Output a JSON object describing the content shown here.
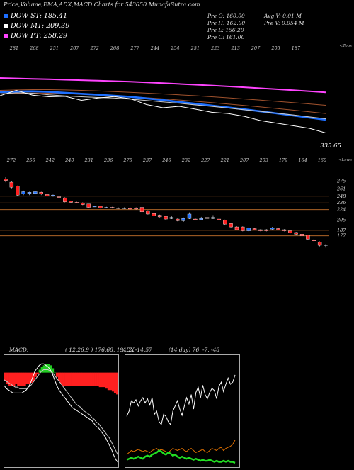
{
  "header": {
    "title": "Price,Volume,EMA,ADX,MACD Charts for 543650 MunafaSutra.com"
  },
  "legend": [
    {
      "label": "DOW ST: 185.41",
      "color": "#1e6fff"
    },
    {
      "label": "DOW MT: 209.39",
      "color": "#ffffff"
    },
    {
      "label": "DOW PT: 258.29",
      "color": "#ff44ff"
    }
  ],
  "stats": {
    "open": "Pre  O: 160.00",
    "high": "Pre  H: 162.00",
    "low": "Pre  L: 156.20",
    "close": "Pre  C: 161.00",
    "avg_vol": "Avg V: 0.01 M",
    "pre_vol": "Pre  V: 0.054  M"
  },
  "chart_data": [
    {
      "type": "line",
      "name": "ema-panel",
      "top_label": "<Tops",
      "bottom_label": "<Lows",
      "tops": [
        "281",
        "268",
        "251",
        "267",
        "272",
        "268",
        "277",
        "244",
        "254",
        "251",
        "223",
        "213",
        "207",
        "205",
        "187"
      ],
      "lows": [
        "272",
        "256",
        "242",
        "240",
        "231",
        "236",
        "275",
        "237",
        "246",
        "232",
        "227",
        "221",
        "207",
        "203",
        "179",
        "164",
        "160"
      ],
      "last_value": "335.65",
      "series": [
        {
          "color": "#ff44ff",
          "values": [
            312,
            311.5,
            311,
            310.6,
            310,
            309.5,
            309,
            308.4,
            307.8,
            307,
            306.2,
            305.3,
            304.4,
            303.5,
            302.5,
            301.5,
            300.4,
            299.3,
            298.2,
            297,
            295.8
          ]
        },
        {
          "color": "#a0522d",
          "values": [
            298,
            298.5,
            298.8,
            298.8,
            298.5,
            298,
            297.4,
            296.6,
            295.8,
            294.9,
            294,
            293,
            292,
            290.8,
            289.6,
            288.3,
            287,
            285.6,
            284.2,
            282.7,
            281.2
          ]
        },
        {
          "color": "#a0522d",
          "values": [
            294,
            294.6,
            295,
            294.8,
            294.3,
            293.6,
            292.8,
            291.8,
            290.8,
            289.7,
            288.5,
            287.1,
            285.7,
            284.2,
            282.6,
            281,
            279.3,
            277.5,
            275.7,
            273.8,
            271.9
          ]
        },
        {
          "color": "#1e6fff",
          "values": [
            296,
            296.7,
            297,
            296.3,
            295.3,
            294.2,
            293.1,
            292,
            290.7,
            289,
            287.1,
            285,
            283,
            280.9,
            278.8,
            276.6,
            274.3,
            272,
            269.6,
            267.2,
            264.8
          ]
        },
        {
          "color": "#cccccc",
          "values": [
            294,
            295.3,
            294.8,
            293,
            291.8,
            290.8,
            290,
            289.4,
            288.1,
            286.6,
            285,
            283.5,
            281.6,
            279.9,
            278.1,
            276.1,
            274.3,
            272.2,
            270.3,
            268.1,
            266
          ]
        },
        {
          "color": "#ffffff",
          "values": [
            292,
            298,
            292.6,
            290.8,
            291.3,
            286.8,
            289.4,
            291,
            288.6,
            282,
            278.4,
            280,
            276.8,
            273.3,
            271.9,
            268.7,
            263.9,
            261,
            258.1,
            255.2,
            250
          ]
        }
      ]
    },
    {
      "type": "candlestick",
      "name": "price-panel",
      "levels": [
        "275",
        "261",
        "248",
        "236",
        "224",
        "205",
        "187",
        "177"
      ],
      "candles": [
        {
          "o": 279,
          "c": 276,
          "h": 282,
          "l": 273
        },
        {
          "o": 273,
          "c": 264,
          "h": 275,
          "l": 262
        },
        {
          "o": 266,
          "c": 250,
          "h": 267,
          "l": 249
        },
        {
          "o": 252,
          "c": 256,
          "h": 258,
          "l": 250
        },
        {
          "o": 253,
          "c": 255,
          "h": 256,
          "l": 250
        },
        {
          "o": 253,
          "c": 256,
          "h": 257,
          "l": 252
        },
        {
          "o": 255,
          "c": 252,
          "h": 256,
          "l": 250
        },
        {
          "o": 251,
          "c": 248,
          "h": 252,
          "l": 246
        },
        {
          "o": 248,
          "c": 250,
          "h": 251,
          "l": 247
        },
        {
          "o": 247,
          "c": 246,
          "h": 248,
          "l": 244
        },
        {
          "o": 245,
          "c": 238,
          "h": 246,
          "l": 237
        },
        {
          "o": 239,
          "c": 237,
          "h": 240,
          "l": 236
        },
        {
          "o": 237,
          "c": 236,
          "h": 238,
          "l": 235
        },
        {
          "o": 236,
          "c": 233,
          "h": 237,
          "l": 232
        },
        {
          "o": 234,
          "c": 228,
          "h": 234,
          "l": 227
        },
        {
          "o": 230,
          "c": 230,
          "h": 231,
          "l": 229
        },
        {
          "o": 230,
          "c": 227,
          "h": 231,
          "l": 226
        },
        {
          "o": 228,
          "c": 228,
          "h": 229,
          "l": 227
        },
        {
          "o": 228,
          "c": 227,
          "h": 229,
          "l": 226
        },
        {
          "o": 227,
          "c": 226,
          "h": 228,
          "l": 225
        },
        {
          "o": 226,
          "c": 227,
          "h": 228,
          "l": 225
        },
        {
          "o": 227,
          "c": 225,
          "h": 228,
          "l": 224
        },
        {
          "o": 227,
          "c": 225,
          "h": 228,
          "l": 224
        },
        {
          "o": 228,
          "c": 220,
          "h": 229,
          "l": 219
        },
        {
          "o": 222,
          "c": 216,
          "h": 223,
          "l": 215
        },
        {
          "o": 217,
          "c": 213,
          "h": 218,
          "l": 212
        },
        {
          "o": 214,
          "c": 211,
          "h": 215,
          "l": 210
        },
        {
          "o": 212,
          "c": 207,
          "h": 213,
          "l": 206
        },
        {
          "o": 208,
          "c": 210,
          "h": 212,
          "l": 207
        },
        {
          "o": 207,
          "c": 204,
          "h": 208,
          "l": 203
        },
        {
          "o": 204,
          "c": 208,
          "h": 210,
          "l": 202
        },
        {
          "o": 208,
          "c": 216,
          "h": 219,
          "l": 207
        },
        {
          "o": 207,
          "c": 206,
          "h": 209,
          "l": 205
        },
        {
          "o": 206,
          "c": 208,
          "h": 211,
          "l": 205
        },
        {
          "o": 210,
          "c": 208,
          "h": 211,
          "l": 206
        },
        {
          "o": 208,
          "c": 210,
          "h": 214,
          "l": 207
        },
        {
          "o": 207,
          "c": 205,
          "h": 208,
          "l": 204
        },
        {
          "o": 205,
          "c": 198,
          "h": 206,
          "l": 197
        },
        {
          "o": 199,
          "c": 193,
          "h": 200,
          "l": 192
        },
        {
          "o": 193,
          "c": 188,
          "h": 194,
          "l": 187
        },
        {
          "o": 193,
          "c": 186,
          "h": 194,
          "l": 185
        },
        {
          "o": 186,
          "c": 191,
          "h": 192,
          "l": 185
        },
        {
          "o": 190,
          "c": 188,
          "h": 191,
          "l": 187
        },
        {
          "o": 188,
          "c": 186,
          "h": 189,
          "l": 185
        },
        {
          "o": 188,
          "c": 186,
          "h": 189,
          "l": 185
        },
        {
          "o": 189,
          "c": 191,
          "h": 193,
          "l": 188
        },
        {
          "o": 190,
          "c": 188,
          "h": 191,
          "l": 187
        },
        {
          "o": 188,
          "c": 186,
          "h": 189,
          "l": 185
        },
        {
          "o": 186,
          "c": 182,
          "h": 187,
          "l": 181
        },
        {
          "o": 183,
          "c": 180,
          "h": 184,
          "l": 179
        },
        {
          "o": 180,
          "c": 177,
          "h": 181,
          "l": 176
        },
        {
          "o": 178,
          "c": 171,
          "h": 179,
          "l": 170
        },
        {
          "o": 170,
          "c": 168,
          "h": 171,
          "l": 167
        },
        {
          "o": 166,
          "c": 160,
          "h": 167,
          "l": 158
        },
        {
          "o": 160,
          "c": 161,
          "h": 162,
          "l": 156
        }
      ]
    },
    {
      "type": "bar",
      "name": "macd-panel",
      "label": "MACD:",
      "values_text": "( 12,26,9 ) 176.68,  191.2,  -14.57",
      "histogram": [
        -6,
        -8,
        -9,
        -9,
        -9,
        -8,
        -9,
        -9,
        -9,
        -9,
        -8,
        -8,
        -7,
        -6,
        -3,
        -1,
        2,
        4,
        5,
        6,
        6,
        5,
        3,
        0,
        -3,
        -6,
        -8,
        -9,
        -9,
        -9,
        -9,
        -9,
        -9,
        -9,
        -9,
        -9,
        -9,
        -9,
        -9,
        -9,
        -9,
        -9,
        -9,
        -9,
        -10,
        -10,
        -10,
        -11,
        -12,
        -12,
        -13,
        -14,
        -15
      ],
      "series": [
        {
          "color": "#ffffff",
          "values": [
            -9,
            -11,
            -12,
            -13,
            -14,
            -14,
            -14,
            -14,
            -14,
            -13,
            -12,
            -10,
            -7,
            -3,
            1,
            3,
            5,
            6,
            6,
            5,
            4,
            2,
            -1,
            -5,
            -9,
            -12,
            -14,
            -16,
            -18,
            -20,
            -22,
            -24,
            -25,
            -26,
            -27,
            -28,
            -29,
            -30,
            -31,
            -32,
            -33,
            -35,
            -37,
            -38,
            -40,
            -42,
            -44,
            -47,
            -50,
            -53,
            -57,
            -60,
            -62
          ]
        },
        {
          "color": "#cccccc",
          "values": [
            -5,
            -6,
            -7,
            -8,
            -9,
            -10,
            -10,
            -11,
            -11,
            -11,
            -11,
            -10,
            -9,
            -7,
            -5,
            -3,
            -1,
            1,
            2,
            2,
            2,
            1,
            0,
            -2,
            -4,
            -6,
            -8,
            -10,
            -12,
            -14,
            -16,
            -18,
            -20,
            -22,
            -23,
            -24,
            -26,
            -27,
            -28,
            -29,
            -31,
            -32,
            -34,
            -35,
            -37,
            -39,
            -41,
            -43,
            -45,
            -48,
            -51,
            -54,
            -57
          ]
        }
      ]
    },
    {
      "type": "line",
      "name": "adx-panel",
      "label": "ADX",
      "values_text": "(14  day) 76,  -7,  -48",
      "series": [
        {
          "color": "#ffffff",
          "values": [
            45,
            50,
            60,
            58,
            61,
            55,
            60,
            63,
            58,
            62,
            56,
            63,
            47,
            50,
            40,
            37,
            47,
            45,
            40,
            37,
            50,
            55,
            60,
            52,
            46,
            55,
            63,
            57,
            66,
            52,
            68,
            73,
            63,
            75,
            66,
            62,
            68,
            72,
            70,
            62,
            74,
            78,
            69,
            76,
            82,
            76,
            78,
            85
          ]
        },
        {
          "color": "#e07000",
          "values": [
            8,
            10,
            12,
            11,
            12,
            13,
            12,
            11,
            12,
            11,
            10,
            12,
            13,
            14,
            12,
            13,
            12,
            11,
            10,
            12,
            14,
            13,
            12,
            13,
            14,
            12,
            11,
            13,
            14,
            12,
            10,
            11,
            12,
            13,
            11,
            10,
            12,
            14,
            13,
            12,
            14,
            15,
            12,
            14,
            15,
            16,
            18,
            22
          ]
        },
        {
          "color": "#22dd22",
          "values": [
            3,
            4,
            5,
            4,
            5,
            6,
            5,
            4,
            6,
            7,
            6,
            8,
            9,
            10,
            12,
            11,
            9,
            8,
            10,
            9,
            7,
            8,
            6,
            5,
            6,
            5,
            4,
            5,
            4,
            3,
            4,
            3,
            2,
            3,
            2,
            2,
            3,
            2,
            1,
            2,
            1,
            1,
            2,
            1,
            2,
            1,
            1,
            0
          ]
        }
      ]
    }
  ]
}
